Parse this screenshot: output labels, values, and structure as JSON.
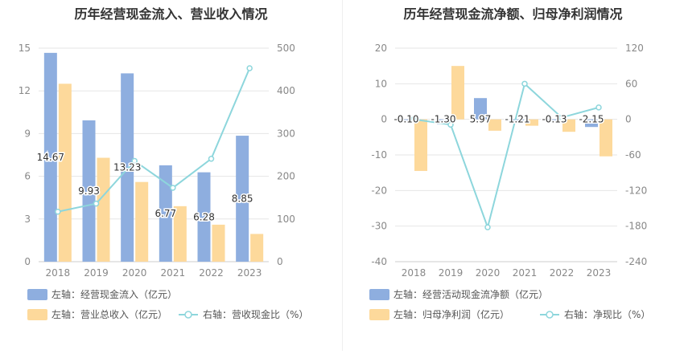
{
  "charts": [
    {
      "id": "left",
      "title": "历年经营现金流入、营业收入情况",
      "legend": {
        "item1": "左轴：经营现金流入（亿元）",
        "item2": "左轴：营业总收入（亿元）",
        "item3": "右轴：营收现金比（%）"
      }
    },
    {
      "id": "right",
      "title": "历年经营现金流净额、归母净利润情况",
      "legend": {
        "item1": "左轴：经营活动现金流净额（亿元）",
        "item2": "左轴：归母净利润（亿元）",
        "item3": "右轴：净现比（%）"
      }
    }
  ],
  "colors": {
    "bar_primary": "#8eaedf",
    "bar_secondary": "#fdd99b",
    "line": "#8dd6dc",
    "grid": "#e6e6e6",
    "axis_text": "#888888",
    "label": "#333333"
  },
  "chart_data": [
    {
      "type": "bar",
      "categories": [
        "2018",
        "2019",
        "2020",
        "2021",
        "2022",
        "2023"
      ],
      "series": [
        {
          "name": "左轴：经营现金流入（亿元）",
          "axis": "left",
          "values": [
            14.67,
            9.93,
            13.23,
            6.77,
            6.28,
            8.85
          ],
          "labels": [
            "14.67",
            "9.93",
            "13.23",
            "6.77",
            "6.28",
            "8.85"
          ]
        },
        {
          "name": "左轴：营业总收入（亿元）",
          "axis": "left",
          "values": [
            12.5,
            7.3,
            5.6,
            3.9,
            2.6,
            1.95
          ]
        },
        {
          "name": "右轴：营收现金比（%）",
          "axis": "right",
          "type": "line",
          "values": [
            117,
            136,
            236,
            173,
            241,
            453
          ]
        }
      ],
      "y_left": {
        "min": 0,
        "max": 15,
        "ticks": [
          0,
          3,
          6,
          9,
          12,
          15
        ]
      },
      "y_right": {
        "min": 0,
        "max": 500,
        "ticks": [
          0,
          100,
          200,
          300,
          400,
          500
        ]
      },
      "grid": true,
      "legend_position": "bottom"
    },
    {
      "type": "bar",
      "categories": [
        "2018",
        "2019",
        "2020",
        "2021",
        "2022",
        "2023"
      ],
      "series": [
        {
          "name": "左轴：经营活动现金流净额（亿元）",
          "axis": "left",
          "values": [
            -0.1,
            -1.3,
            5.97,
            -1.21,
            -0.13,
            -2.15
          ],
          "labels": [
            "-0.10",
            "-1.30",
            "5.97",
            "-1.21",
            "-0.13",
            "-2.15"
          ]
        },
        {
          "name": "左轴：归母净利润（亿元）",
          "axis": "left",
          "values": [
            -14.5,
            15.0,
            -3.2,
            -1.8,
            -3.5,
            -10.4
          ]
        },
        {
          "name": "右轴：净现比（%）",
          "axis": "right",
          "type": "line",
          "values": [
            0,
            -9,
            -182,
            60,
            3,
            20
          ]
        }
      ],
      "y_left": {
        "min": -40,
        "max": 20,
        "ticks": [
          -40,
          -30,
          -20,
          -10,
          0,
          10,
          20
        ]
      },
      "y_right": {
        "min": -240,
        "max": 120,
        "ticks": [
          -240,
          -180,
          -120,
          -60,
          0,
          60,
          120
        ]
      },
      "grid": true,
      "legend_position": "bottom"
    }
  ]
}
